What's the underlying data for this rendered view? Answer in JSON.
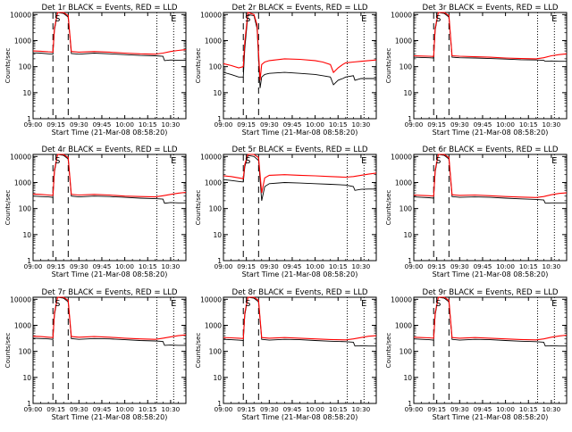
{
  "chart_data": {
    "type": "line",
    "common": {
      "xlabel": "Start Time (21-Mar-08 08:58:20)",
      "ylabel": "Counts/sec",
      "x_ticks": [
        "09:00",
        "09:15",
        "09:30",
        "09:45",
        "10:00",
        "10:15",
        "10:30"
      ],
      "x_tick_minutes": [
        0,
        15,
        30,
        45,
        60,
        75,
        90
      ],
      "xlim_minutes": [
        0,
        100
      ],
      "y_scale": "log",
      "ylim": [
        1,
        12000
      ],
      "y_ticks": [
        "1",
        "10",
        "100",
        "1000",
        "10000"
      ],
      "y_tick_values": [
        1,
        10,
        100,
        1000,
        10000
      ],
      "series_colors": {
        "events": "#000000",
        "lld": "#ff0000"
      },
      "markers": [
        {
          "label": "S",
          "minute": 16
        },
        {
          "label": "E",
          "minute": 92
        }
      ],
      "dashed_line_minutes": [
        13,
        23
      ],
      "dotted_line_minutes": [
        81,
        92
      ]
    },
    "panels": [
      {
        "title": "Det 1r BLACK = Events, RED = LLD",
        "series": [
          {
            "key": "events",
            "x": [
              0,
              5,
              10,
              13,
              14,
              16,
              20,
              23,
              25,
              30,
              40,
              50,
              60,
              70,
              80,
              85,
              86,
              90,
              95,
              100
            ],
            "y": [
              340,
              330,
              310,
              300,
              2500,
              12000,
              11000,
              8000,
              320,
              300,
              330,
              310,
              290,
              270,
              260,
              250,
              170,
              180,
              175,
              175
            ]
          },
          {
            "key": "lld",
            "x": [
              0,
              5,
              10,
              13,
              14,
              16,
              20,
              23,
              25,
              30,
              40,
              50,
              60,
              70,
              80,
              85,
              90,
              95,
              100
            ],
            "y": [
              400,
              390,
              370,
              360,
              3000,
              13000,
              12000,
              9000,
              380,
              360,
              380,
              360,
              330,
              310,
              300,
              330,
              380,
              420,
              450
            ]
          }
        ]
      },
      {
        "title": "Det 2r BLACK = Events, RED = LLD",
        "series": [
          {
            "key": "events",
            "x": [
              0,
              5,
              10,
              13,
              14,
              16,
              20,
              22,
              24,
              25,
              27,
              30,
              40,
              50,
              60,
              65,
              70,
              72,
              75,
              78,
              80,
              85,
              86,
              90,
              100
            ],
            "y": [
              60,
              50,
              40,
              40,
              500,
              10000,
              9000,
              3000,
              15,
              40,
              50,
              55,
              60,
              55,
              50,
              45,
              40,
              20,
              30,
              35,
              40,
              45,
              30,
              35,
              35
            ]
          },
          {
            "key": "lld",
            "x": [
              0,
              5,
              10,
              13,
              14,
              16,
              20,
              22,
              24,
              25,
              27,
              30,
              40,
              50,
              60,
              65,
              70,
              72,
              75,
              78,
              80,
              85,
              90,
              95,
              100
            ],
            "y": [
              130,
              110,
              90,
              100,
              900,
              12000,
              10000,
              4000,
              30,
              120,
              150,
              170,
              200,
              190,
              170,
              150,
              120,
              60,
              90,
              120,
              140,
              150,
              160,
              170,
              180
            ]
          }
        ]
      },
      {
        "title": "Det 3r BLACK = Events, RED = LLD",
        "series": [
          {
            "key": "events",
            "x": [
              0,
              5,
              10,
              13,
              14,
              16,
              20,
              23,
              25,
              30,
              40,
              50,
              60,
              70,
              80,
              85,
              86,
              90,
              95,
              100
            ],
            "y": [
              230,
              225,
              220,
              215,
              2500,
              12000,
              11000,
              8000,
              230,
              220,
              215,
              205,
              195,
              185,
              180,
              175,
              160,
              165,
              160,
              160
            ]
          },
          {
            "key": "lld",
            "x": [
              0,
              5,
              10,
              13,
              14,
              16,
              20,
              23,
              25,
              30,
              40,
              50,
              60,
              70,
              80,
              85,
              90,
              95,
              100
            ],
            "y": [
              260,
              255,
              250,
              245,
              3000,
              13000,
              12000,
              9000,
              260,
              250,
              240,
              230,
              215,
              205,
              200,
              220,
              260,
              290,
              310
            ]
          }
        ]
      },
      {
        "title": "Det 4r BLACK = Events, RED = LLD",
        "series": [
          {
            "key": "events",
            "x": [
              0,
              5,
              10,
              13,
              14,
              16,
              20,
              23,
              25,
              30,
              40,
              50,
              60,
              70,
              80,
              85,
              86,
              90,
              95,
              100
            ],
            "y": [
              300,
              290,
              280,
              270,
              2500,
              12000,
              11000,
              8000,
              300,
              280,
              300,
              290,
              270,
              250,
              240,
              230,
              160,
              170,
              165,
              165
            ]
          },
          {
            "key": "lld",
            "x": [
              0,
              5,
              10,
              13,
              14,
              16,
              20,
              23,
              25,
              30,
              40,
              50,
              60,
              70,
              80,
              85,
              90,
              95,
              100
            ],
            "y": [
              360,
              350,
              330,
              320,
              3000,
              13000,
              12000,
              9000,
              350,
              330,
              350,
              330,
              300,
              290,
              280,
              310,
              350,
              390,
              420
            ]
          }
        ]
      },
      {
        "title": "Det 5r BLACK = Events, RED = LLD",
        "series": [
          {
            "key": "events",
            "x": [
              0,
              5,
              10,
              13,
              14,
              16,
              20,
              23,
              25,
              27,
              30,
              40,
              50,
              60,
              70,
              80,
              85,
              86,
              90,
              95,
              100
            ],
            "y": [
              1300,
              1200,
              1100,
              1050,
              4000,
              11000,
              10000,
              7000,
              200,
              700,
              900,
              1000,
              950,
              900,
              850,
              800,
              700,
              500,
              550,
              560,
              560
            ]
          },
          {
            "key": "lld",
            "x": [
              0,
              5,
              10,
              13,
              14,
              16,
              20,
              23,
              25,
              27,
              30,
              40,
              50,
              60,
              70,
              80,
              85,
              90,
              95,
              100
            ],
            "y": [
              1800,
              1700,
              1500,
              1400,
              5000,
              13000,
              12000,
              9000,
              400,
              1500,
              1900,
              2000,
              1900,
              1800,
              1700,
              1600,
              1700,
              1900,
              2100,
              2300
            ]
          }
        ]
      },
      {
        "title": "Det 6r BLACK = Events, RED = LLD",
        "series": [
          {
            "key": "events",
            "x": [
              0,
              5,
              10,
              13,
              14,
              16,
              20,
              23,
              25,
              30,
              40,
              50,
              60,
              70,
              80,
              85,
              86,
              90,
              95,
              100
            ],
            "y": [
              280,
              270,
              260,
              250,
              2500,
              12000,
              11000,
              8000,
              290,
              270,
              280,
              270,
              250,
              235,
              225,
              215,
              160,
              165,
              165,
              165
            ]
          },
          {
            "key": "lld",
            "x": [
              0,
              5,
              10,
              13,
              14,
              16,
              20,
              23,
              25,
              30,
              40,
              50,
              60,
              70,
              80,
              85,
              90,
              95,
              100
            ],
            "y": [
              330,
              320,
              310,
              300,
              3000,
              13000,
              12000,
              9000,
              340,
              320,
              330,
              310,
              290,
              275,
              265,
              290,
              340,
              380,
              400
            ]
          }
        ]
      },
      {
        "title": "Det 7r BLACK = Events, RED = LLD",
        "series": [
          {
            "key": "events",
            "x": [
              0,
              5,
              10,
              13,
              14,
              16,
              20,
              23,
              25,
              30,
              40,
              50,
              60,
              70,
              80,
              85,
              86,
              90,
              95,
              100
            ],
            "y": [
              320,
              310,
              300,
              290,
              2500,
              12000,
              11000,
              8000,
              310,
              290,
              310,
              300,
              280,
              260,
              250,
              240,
              170,
              175,
              170,
              170
            ]
          },
          {
            "key": "lld",
            "x": [
              0,
              5,
              10,
              13,
              14,
              16,
              20,
              23,
              25,
              30,
              40,
              50,
              60,
              70,
              80,
              85,
              90,
              95,
              100
            ],
            "y": [
              380,
              370,
              350,
              340,
              3000,
              13000,
              12000,
              9000,
              370,
              350,
              370,
              350,
              320,
              300,
              290,
              320,
              360,
              400,
              430
            ]
          }
        ]
      },
      {
        "title": "Det 8r BLACK = Events, RED = LLD",
        "series": [
          {
            "key": "events",
            "x": [
              0,
              5,
              10,
              13,
              14,
              16,
              20,
              23,
              25,
              30,
              40,
              50,
              60,
              70,
              80,
              85,
              86,
              90,
              95,
              100
            ],
            "y": [
              290,
              280,
              270,
              260,
              2500,
              12000,
              11000,
              8000,
              290,
              270,
              290,
              280,
              260,
              245,
              235,
              225,
              160,
              165,
              160,
              160
            ]
          },
          {
            "key": "lld",
            "x": [
              0,
              5,
              10,
              13,
              14,
              16,
              20,
              23,
              25,
              30,
              40,
              50,
              60,
              70,
              80,
              85,
              90,
              95,
              100
            ],
            "y": [
              340,
              330,
              320,
              310,
              3000,
              13000,
              12000,
              9000,
              340,
              320,
              340,
              320,
              300,
              285,
              275,
              300,
              340,
              380,
              400
            ]
          }
        ]
      },
      {
        "title": "Det 9r BLACK = Events, RED = LLD",
        "series": [
          {
            "key": "events",
            "x": [
              0,
              5,
              10,
              13,
              14,
              16,
              20,
              23,
              25,
              30,
              40,
              50,
              60,
              70,
              80,
              85,
              86,
              90,
              95,
              100
            ],
            "y": [
              300,
              290,
              280,
              270,
              2500,
              12000,
              11000,
              8000,
              290,
              270,
              290,
              280,
              260,
              245,
              235,
              225,
              160,
              165,
              160,
              160
            ]
          },
          {
            "key": "lld",
            "x": [
              0,
              5,
              10,
              13,
              14,
              16,
              20,
              23,
              25,
              30,
              40,
              50,
              60,
              70,
              80,
              85,
              90,
              95,
              100
            ],
            "y": [
              350,
              340,
              330,
              320,
              3000,
              13000,
              12000,
              9000,
              340,
              320,
              340,
              320,
              300,
              285,
              275,
              300,
              350,
              390,
              420
            ]
          }
        ]
      }
    ]
  }
}
